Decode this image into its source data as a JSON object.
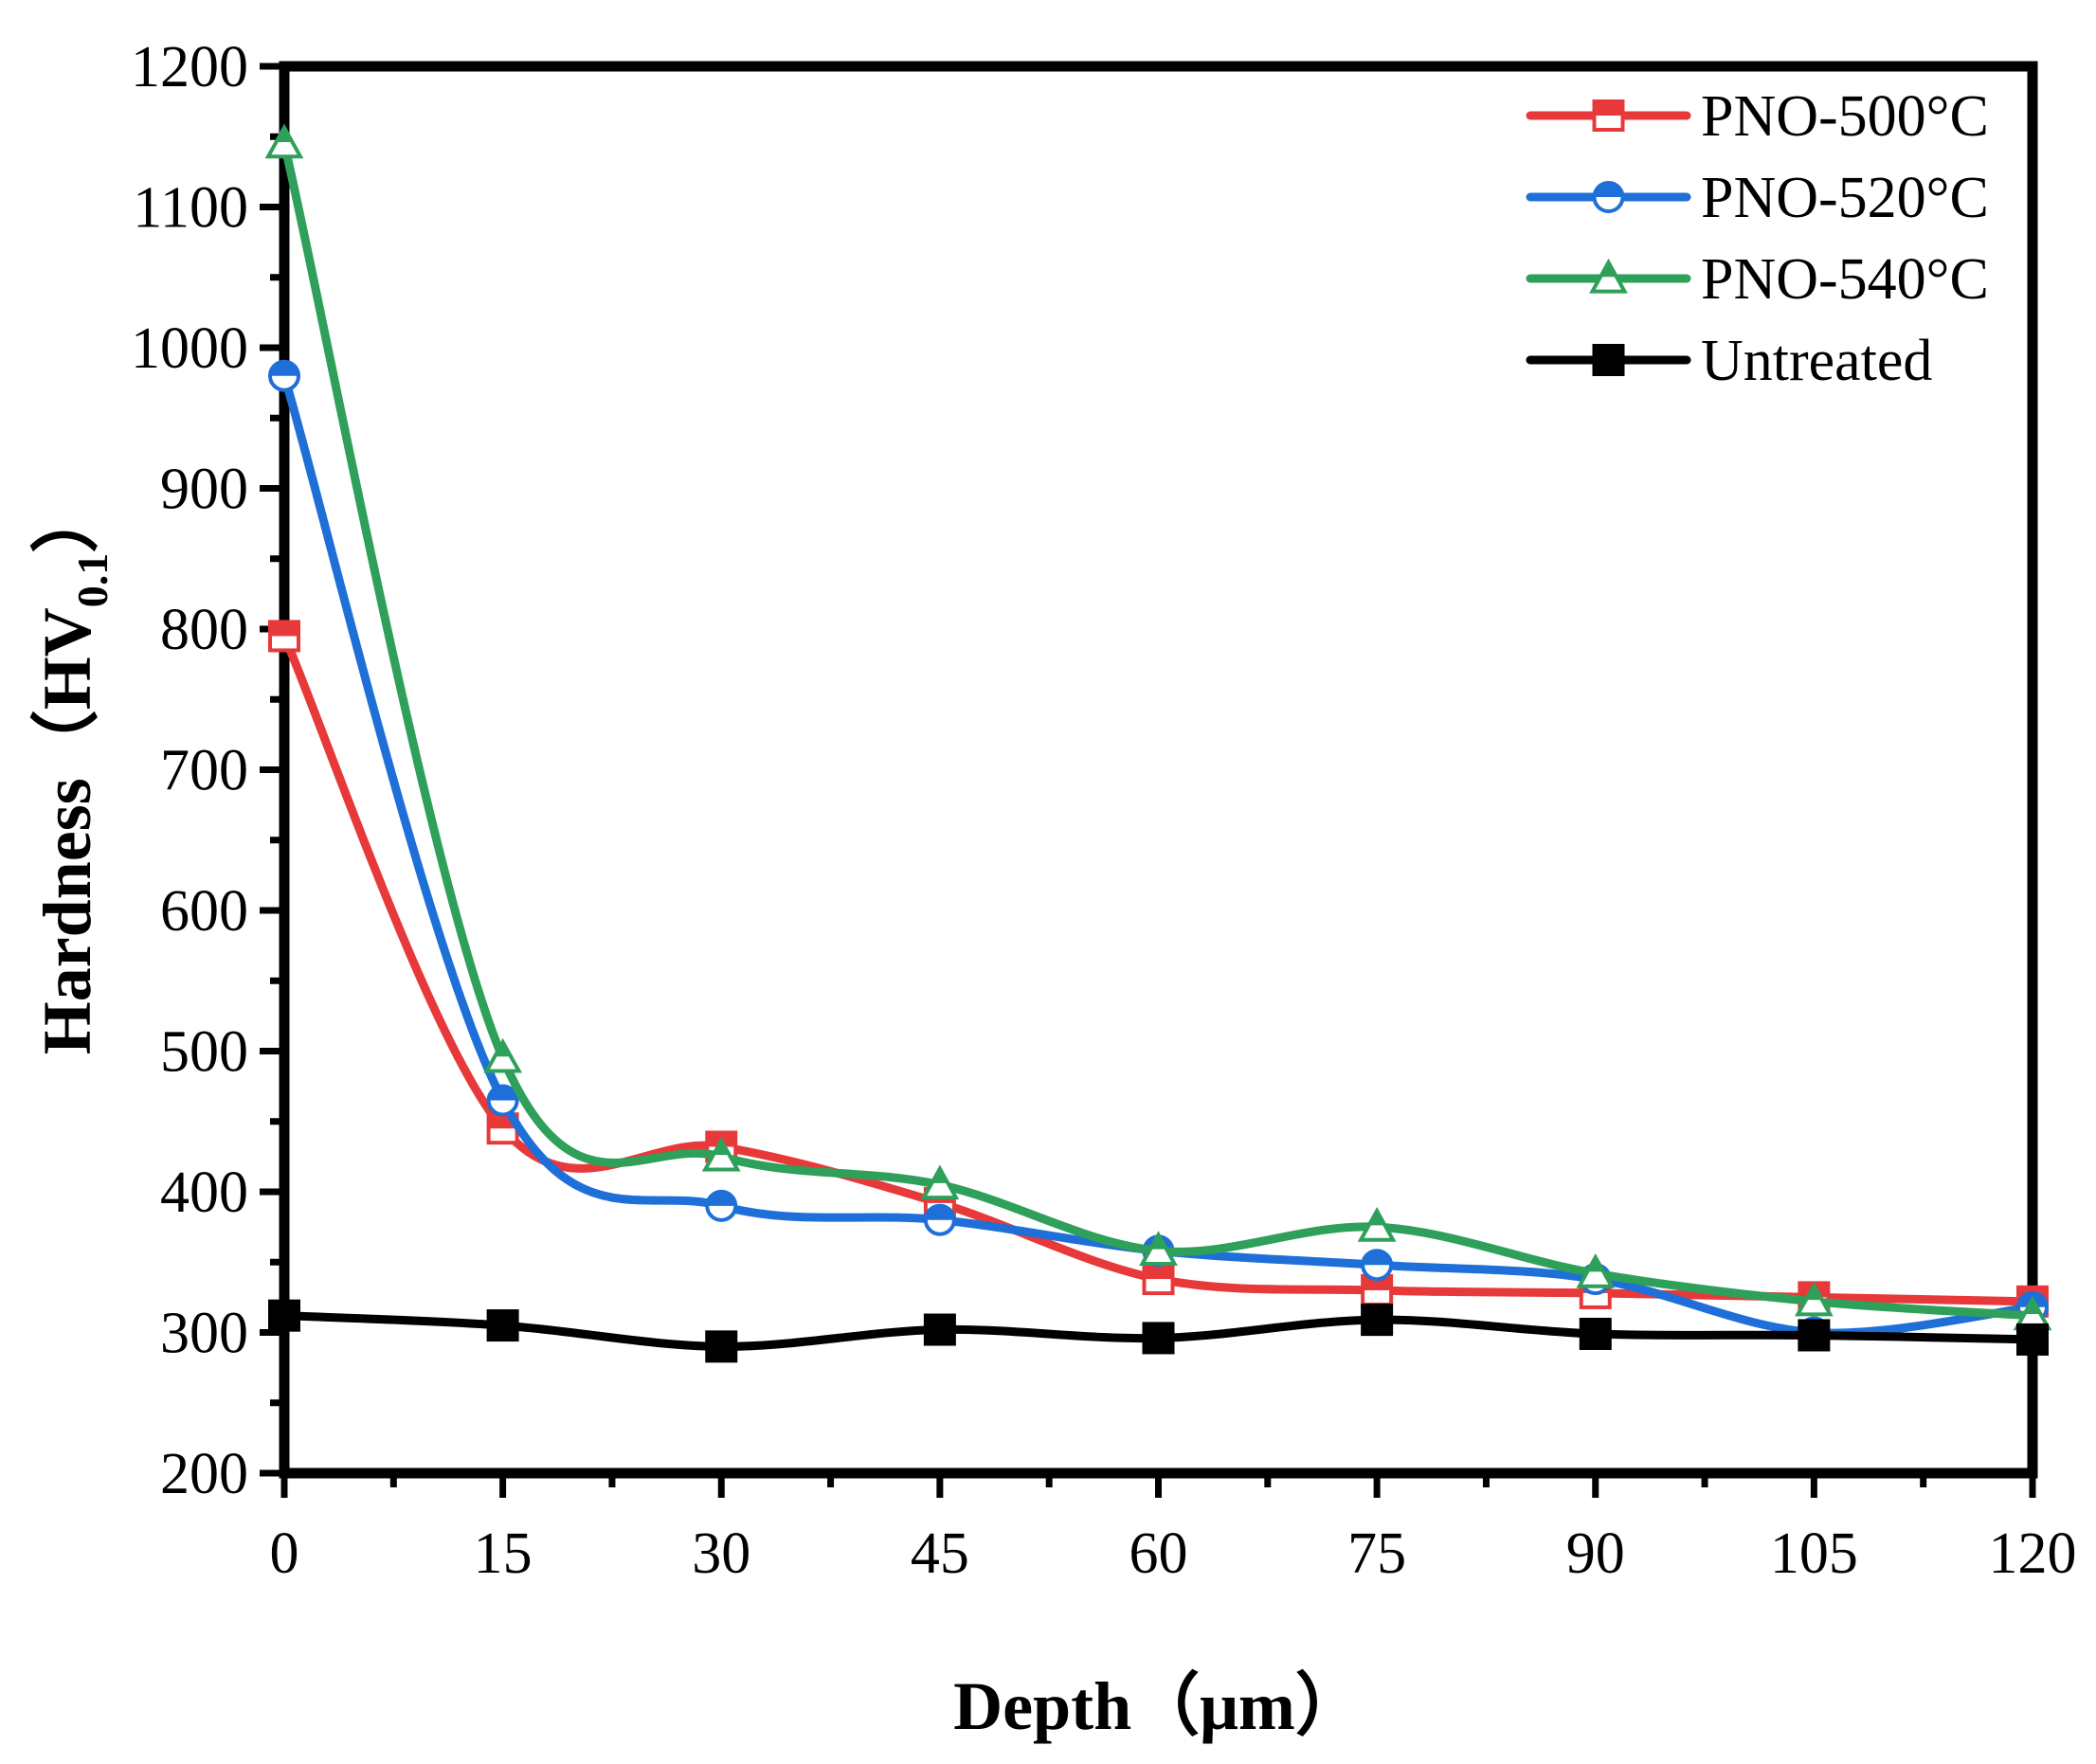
{
  "chart_data": {
    "type": "line",
    "title": "",
    "xlabel": "Depth（μm）",
    "ylabel": {
      "main": "Hardness（HV",
      "sub": "0.1",
      "close": "）"
    },
    "xlim": [
      0,
      120
    ],
    "ylim": [
      200,
      1200
    ],
    "xticks": [
      0,
      15,
      30,
      45,
      60,
      75,
      90,
      105,
      120
    ],
    "yticks": [
      200,
      300,
      400,
      500,
      600,
      700,
      800,
      900,
      1000,
      1100,
      1200
    ],
    "x": [
      0,
      15,
      30,
      45,
      60,
      75,
      90,
      105,
      120
    ],
    "grid": false,
    "legend_position": "top-right",
    "series": [
      {
        "name": "PNO-500°C",
        "color": "#e8393a",
        "marker": "square-half",
        "values": [
          795,
          445,
          432,
          392,
          338,
          330,
          328,
          325,
          322
        ]
      },
      {
        "name": "PNO-520°C",
        "color": "#1f6fd8",
        "marker": "circle-half",
        "values": [
          980,
          465,
          390,
          380,
          358,
          348,
          338,
          300,
          318
        ]
      },
      {
        "name": "PNO-540°C",
        "color": "#2ea05a",
        "marker": "triangle-half",
        "values": [
          1145,
          495,
          425,
          405,
          358,
          375,
          342,
          322,
          312
        ]
      },
      {
        "name": "Untreated",
        "color": "#000000",
        "marker": "square-filled",
        "values": [
          312,
          305,
          290,
          302,
          296,
          309,
          299,
          298,
          295
        ]
      }
    ]
  }
}
